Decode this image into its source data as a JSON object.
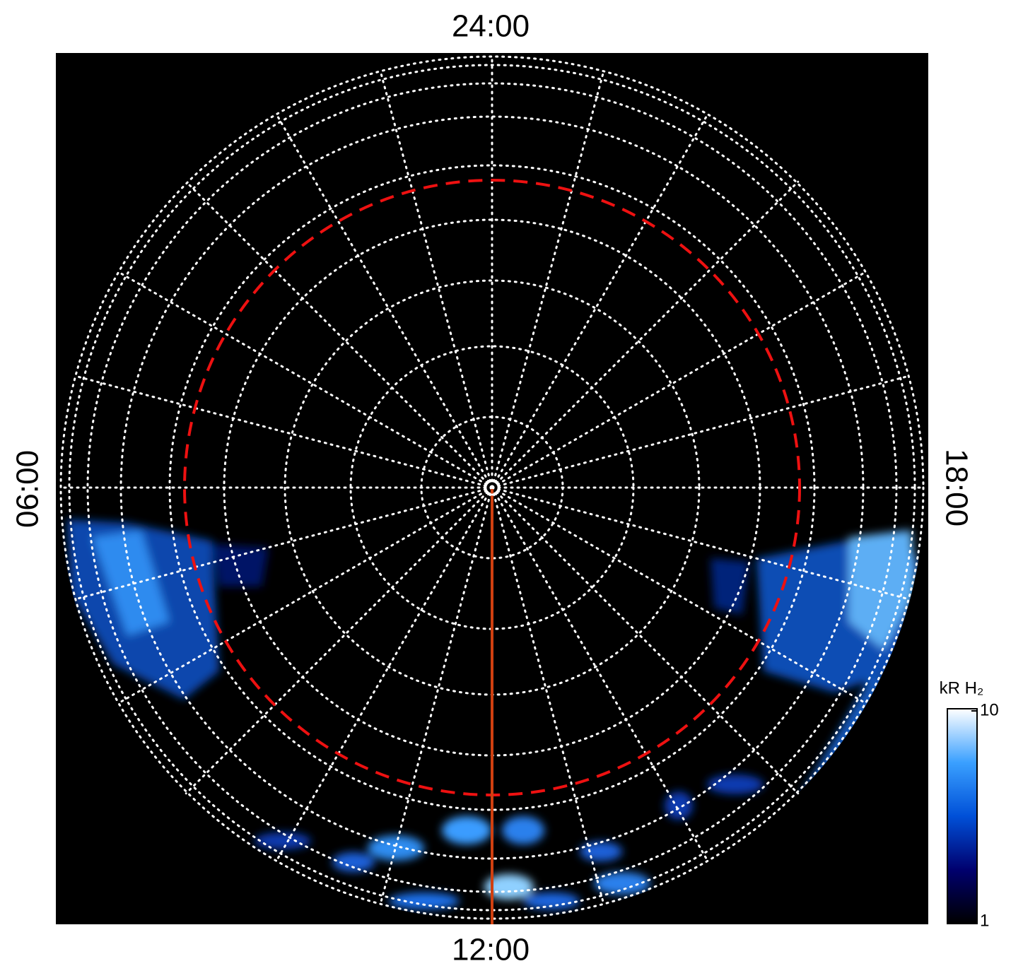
{
  "chart_data": {
    "type": "polar",
    "hour_labels": {
      "top": "24:00",
      "left": "06:00",
      "bottom": "12:00",
      "right": "18:00"
    },
    "colorbar": {
      "label": "kR H₂",
      "clim": [
        1,
        10
      ],
      "ticks": [
        1,
        10
      ],
      "log": true,
      "colors": [
        "#000000",
        "#00006e",
        "#0050d8",
        "#3aa0ff",
        "#ffffff"
      ]
    },
    "grid": true
  }
}
